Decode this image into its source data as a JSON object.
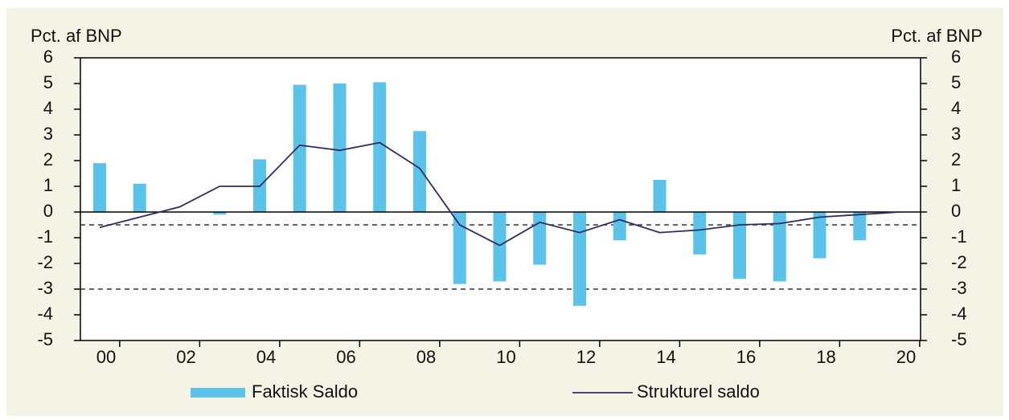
{
  "chart_data": {
    "type": "bar_line",
    "y_label_left": "Pct. af BNP",
    "y_label_right": "Pct. af BNP",
    "categories": [
      "00",
      null,
      "02",
      null,
      "04",
      null,
      "06",
      null,
      "08",
      null,
      "10",
      null,
      "12",
      null,
      "14",
      null,
      "16",
      null,
      "18",
      null,
      "20"
    ],
    "series": [
      {
        "name": "Faktisk Saldo",
        "kind": "bar",
        "color": "#5bc2ea",
        "values": [
          1.9,
          1.1,
          0,
          -0.1,
          2.05,
          4.95,
          5.0,
          5.05,
          3.15,
          -2.8,
          -2.7,
          -2.05,
          -3.65,
          -1.1,
          1.25,
          -1.65,
          -2.6,
          -2.7,
          -1.8,
          -1.1,
          0
        ]
      },
      {
        "name": "Strukturel saldo",
        "kind": "line",
        "color": "#2e2e5e",
        "values": [
          -0.6,
          -0.2,
          0.2,
          1.0,
          1.0,
          2.6,
          2.4,
          2.7,
          1.7,
          -0.5,
          -1.3,
          -0.4,
          -0.8,
          -0.3,
          -0.8,
          -0.7,
          -0.5,
          -0.45,
          -0.2,
          -0.1,
          0
        ]
      }
    ],
    "reference_lines": [
      -0.5,
      -3
    ],
    "ylim": [
      -5,
      6
    ],
    "yticks": [
      -5,
      -4,
      -3,
      -2,
      -1,
      0,
      1,
      2,
      3,
      4,
      5,
      6
    ],
    "y2lim": [
      -5,
      6
    ],
    "y2ticks": [
      -5,
      -4,
      -3,
      -2,
      -1,
      0,
      1,
      2,
      3,
      4,
      5,
      6
    ]
  }
}
